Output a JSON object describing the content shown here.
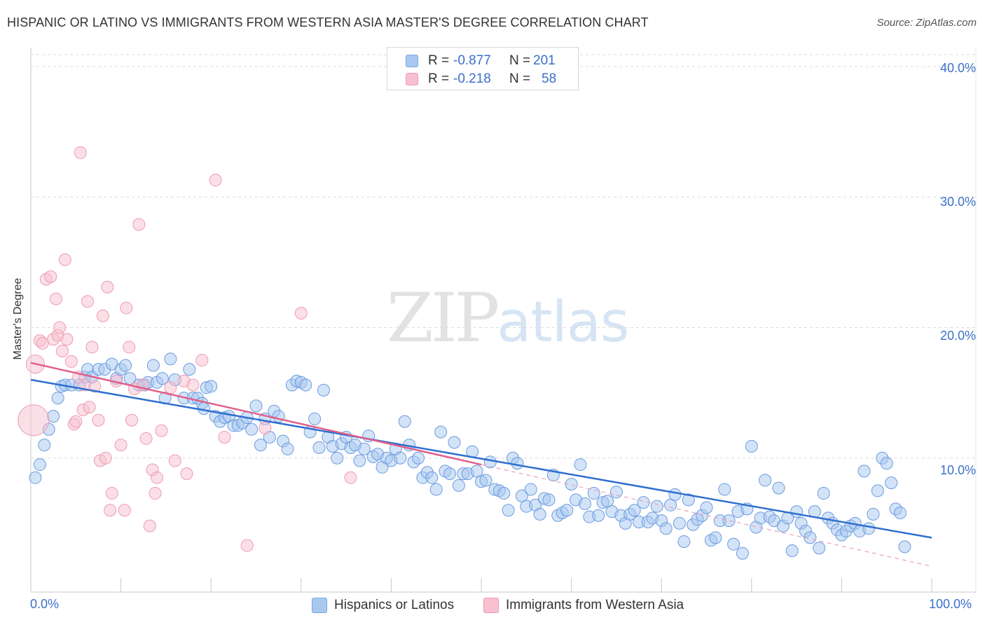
{
  "title": "HISPANIC OR LATINO VS IMMIGRANTS FROM WESTERN ASIA MASTER'S DEGREE CORRELATION CHART",
  "source": "Source: ZipAtlas.com",
  "watermark": {
    "zip": "ZIP",
    "atlas": "atlas"
  },
  "legend_top": {
    "rows": [
      {
        "r_label": "R =",
        "r_value": "-0.877",
        "n_label": "N =",
        "n_value": "201",
        "color": "#a8c8f0",
        "border": "#7aa6e0"
      },
      {
        "r_label": "R =",
        "r_value": "-0.218",
        "n_label": "N =",
        "n_value": "58",
        "color": "#f8c0d0",
        "border": "#ee9ab2"
      }
    ]
  },
  "chart_data": {
    "type": "scatter",
    "title": "HISPANIC OR LATINO VS IMMIGRANTS FROM WESTERN ASIA MASTER'S DEGREE CORRELATION CHART",
    "xlabel": "",
    "ylabel": "Master's Degree",
    "xlim": [
      0,
      100
    ],
    "ylim": [
      0,
      40
    ],
    "x_tick_labels": [
      "0.0%",
      "100.0%"
    ],
    "y_ticks": [
      10,
      20,
      30,
      40
    ],
    "y_tick_labels": [
      "10.0%",
      "20.0%",
      "30.0%",
      "40.0%"
    ],
    "grid": true,
    "legend_position": "top-center",
    "series": [
      {
        "name": "Hispanics or Latinos",
        "color": "#a8c8f0",
        "stroke": "#6b9be0",
        "trend": {
          "x": [
            0,
            100
          ],
          "y": [
            16.0,
            3.9
          ],
          "color": "#2f6fd0"
        },
        "points": [
          [
            0.5,
            8.5
          ],
          [
            1,
            9.5
          ],
          [
            1.5,
            11
          ],
          [
            2,
            12.2
          ],
          [
            2.5,
            13.2
          ],
          [
            3,
            14.6
          ],
          [
            3.4,
            15.5
          ],
          [
            3.8,
            15.6
          ],
          [
            4.5,
            15.6
          ],
          [
            5.4,
            15.6
          ],
          [
            6,
            16.2
          ],
          [
            6.3,
            16.8
          ],
          [
            6.8,
            16.2
          ],
          [
            7.5,
            16.8
          ],
          [
            8.2,
            16.8
          ],
          [
            9,
            17.2
          ],
          [
            9.5,
            16.1
          ],
          [
            10,
            16.8
          ],
          [
            10.5,
            17.1
          ],
          [
            11,
            16.1
          ],
          [
            12,
            15.6
          ],
          [
            12.6,
            15.6
          ],
          [
            13,
            15.8
          ],
          [
            13.6,
            17.1
          ],
          [
            14,
            15.8
          ],
          [
            14.6,
            16.1
          ],
          [
            14.9,
            14.6
          ],
          [
            15.5,
            17.6
          ],
          [
            16,
            16.0
          ],
          [
            17,
            14.6
          ],
          [
            17.6,
            16.8
          ],
          [
            18,
            14.6
          ],
          [
            18.5,
            14.6
          ],
          [
            19,
            14.2
          ],
          [
            19.2,
            13.8
          ],
          [
            19.5,
            15.4
          ],
          [
            20,
            15.5
          ],
          [
            20.5,
            13.2
          ],
          [
            21,
            12.8
          ],
          [
            21.5,
            13.1
          ],
          [
            22,
            13.2
          ],
          [
            22.5,
            12.5
          ],
          [
            23,
            12.5
          ],
          [
            23.5,
            12.7
          ],
          [
            24,
            13.1
          ],
          [
            24.5,
            12.2
          ],
          [
            25,
            14.0
          ],
          [
            25.5,
            11.0
          ],
          [
            26,
            13.0
          ],
          [
            26.5,
            11.6
          ],
          [
            27,
            13.6
          ],
          [
            27.5,
            13.2
          ],
          [
            28,
            11.3
          ],
          [
            28.5,
            10.7
          ],
          [
            29,
            15.6
          ],
          [
            29.5,
            15.9
          ],
          [
            30,
            15.8
          ],
          [
            30.5,
            15.6
          ],
          [
            31,
            12.0
          ],
          [
            31.5,
            13.0
          ],
          [
            32,
            10.8
          ],
          [
            32.5,
            15.2
          ],
          [
            33,
            11.6
          ],
          [
            33.5,
            10.9
          ],
          [
            34,
            10.0
          ],
          [
            34.5,
            11.1
          ],
          [
            35,
            11.6
          ],
          [
            35.5,
            10.8
          ],
          [
            36,
            11.0
          ],
          [
            36.5,
            9.8
          ],
          [
            37,
            10.7
          ],
          [
            37.5,
            11.7
          ],
          [
            38,
            10.1
          ],
          [
            38.5,
            10.3
          ],
          [
            39,
            9.3
          ],
          [
            39.5,
            10.0
          ],
          [
            40,
            9.8
          ],
          [
            40.5,
            10.7
          ],
          [
            41,
            10.0
          ],
          [
            41.5,
            12.8
          ],
          [
            42,
            11.0
          ],
          [
            42.5,
            9.7
          ],
          [
            43,
            10.0
          ],
          [
            43.5,
            8.5
          ],
          [
            44,
            8.9
          ],
          [
            44.5,
            8.5
          ],
          [
            45,
            7.6
          ],
          [
            45.5,
            12.0
          ],
          [
            46,
            9.0
          ],
          [
            46.5,
            8.8
          ],
          [
            47,
            11.2
          ],
          [
            47.5,
            7.9
          ],
          [
            48,
            8.8
          ],
          [
            48.5,
            8.8
          ],
          [
            49,
            10.5
          ],
          [
            49.5,
            9.0
          ],
          [
            50,
            8.2
          ],
          [
            50.5,
            8.3
          ],
          [
            51,
            9.7
          ],
          [
            51.5,
            7.6
          ],
          [
            52,
            7.5
          ],
          [
            52.5,
            7.3
          ],
          [
            53,
            6.0
          ],
          [
            53.5,
            10.0
          ],
          [
            54,
            9.6
          ],
          [
            54.5,
            7.1
          ],
          [
            55,
            6.3
          ],
          [
            55.5,
            7.6
          ],
          [
            56,
            6.4
          ],
          [
            56.5,
            5.7
          ],
          [
            57,
            6.9
          ],
          [
            57.5,
            6.8
          ],
          [
            58,
            8.7
          ],
          [
            58.5,
            5.6
          ],
          [
            59,
            5.8
          ],
          [
            59.5,
            6.0
          ],
          [
            60,
            8.0
          ],
          [
            60.5,
            6.8
          ],
          [
            61,
            9.5
          ],
          [
            61.5,
            6.5
          ],
          [
            62,
            5.5
          ],
          [
            62.5,
            7.3
          ],
          [
            63,
            5.6
          ],
          [
            63.5,
            6.6
          ],
          [
            64,
            6.7
          ],
          [
            64.5,
            5.9
          ],
          [
            65,
            7.4
          ],
          [
            65.5,
            5.6
          ],
          [
            66,
            5.0
          ],
          [
            66.5,
            5.7
          ],
          [
            67,
            6.0
          ],
          [
            67.5,
            5.1
          ],
          [
            68,
            6.6
          ],
          [
            68.5,
            5.1
          ],
          [
            69,
            5.4
          ],
          [
            69.5,
            6.3
          ],
          [
            70,
            5.2
          ],
          [
            70.5,
            4.6
          ],
          [
            71,
            6.4
          ],
          [
            71.5,
            7.2
          ],
          [
            72,
            5.0
          ],
          [
            72.5,
            3.6
          ],
          [
            73,
            6.8
          ],
          [
            73.5,
            4.9
          ],
          [
            74,
            5.3
          ],
          [
            74.5,
            5.6
          ],
          [
            75,
            6.2
          ],
          [
            75.5,
            3.7
          ],
          [
            76,
            3.9
          ],
          [
            76.5,
            5.2
          ],
          [
            77,
            7.6
          ],
          [
            77.5,
            5.2
          ],
          [
            78,
            3.4
          ],
          [
            78.5,
            5.9
          ],
          [
            79,
            2.7
          ],
          [
            79.5,
            6.1
          ],
          [
            80,
            10.9
          ],
          [
            80.5,
            4.7
          ],
          [
            81,
            5.4
          ],
          [
            81.5,
            8.3
          ],
          [
            82,
            5.5
          ],
          [
            82.5,
            5.2
          ],
          [
            83,
            7.7
          ],
          [
            83.5,
            4.8
          ],
          [
            84,
            5.4
          ],
          [
            84.5,
            2.9
          ],
          [
            85,
            5.9
          ],
          [
            85.5,
            5.0
          ],
          [
            86,
            4.4
          ],
          [
            86.5,
            3.9
          ],
          [
            87,
            5.9
          ],
          [
            87.5,
            3.1
          ],
          [
            88,
            7.3
          ],
          [
            88.5,
            5.4
          ],
          [
            89,
            5.0
          ],
          [
            89.5,
            4.5
          ],
          [
            90,
            4.1
          ],
          [
            90.5,
            4.4
          ],
          [
            91,
            4.8
          ],
          [
            91.5,
            5.0
          ],
          [
            92,
            4.4
          ],
          [
            92.5,
            9.0
          ],
          [
            93,
            4.6
          ],
          [
            93.5,
            5.7
          ],
          [
            94,
            7.5
          ],
          [
            94.5,
            10.0
          ],
          [
            95,
            9.6
          ],
          [
            95.5,
            8.1
          ],
          [
            96,
            6.1
          ],
          [
            96.5,
            5.8
          ],
          [
            97,
            3.2
          ]
        ]
      },
      {
        "name": "Immigrants from Western Asia",
        "color": "#f8c0d0",
        "stroke": "#ee9ab2",
        "trend": {
          "x": [
            0,
            50
          ],
          "y": [
            17.3,
            9.5
          ],
          "color": "#e0608a"
        },
        "points": [
          [
            0.3,
            12.9
          ],
          [
            0.5,
            17.2
          ],
          [
            1,
            19.0
          ],
          [
            1.3,
            18.8
          ],
          [
            1.7,
            23.7
          ],
          [
            2.2,
            23.9
          ],
          [
            2.5,
            19.1
          ],
          [
            2.8,
            22.2
          ],
          [
            3,
            19.4
          ],
          [
            3.2,
            20.0
          ],
          [
            3.5,
            18.2
          ],
          [
            3.8,
            25.2
          ],
          [
            4,
            19.1
          ],
          [
            4.5,
            17.4
          ],
          [
            4.8,
            12.6
          ],
          [
            5,
            12.8
          ],
          [
            5.3,
            16.2
          ],
          [
            5.5,
            33.4
          ],
          [
            5.8,
            13.7
          ],
          [
            6,
            15.6
          ],
          [
            6.3,
            22.0
          ],
          [
            6.5,
            13.9
          ],
          [
            6.8,
            18.5
          ],
          [
            7.1,
            15.5
          ],
          [
            7.5,
            12.9
          ],
          [
            7.7,
            9.8
          ],
          [
            8,
            20.9
          ],
          [
            8.3,
            10.0
          ],
          [
            8.5,
            23.1
          ],
          [
            8.8,
            6.0
          ],
          [
            9,
            7.3
          ],
          [
            9.5,
            15.9
          ],
          [
            10,
            11.0
          ],
          [
            10.4,
            6.0
          ],
          [
            10.6,
            21.5
          ],
          [
            10.9,
            18.5
          ],
          [
            11.2,
            12.9
          ],
          [
            11.5,
            15.3
          ],
          [
            12,
            27.9
          ],
          [
            12.4,
            15.6
          ],
          [
            12.8,
            11.5
          ],
          [
            13.2,
            4.8
          ],
          [
            13.5,
            9.1
          ],
          [
            13.8,
            7.3
          ],
          [
            14,
            8.5
          ],
          [
            14.5,
            12.1
          ],
          [
            15.5,
            15.4
          ],
          [
            16,
            9.8
          ],
          [
            17,
            15.9
          ],
          [
            17.3,
            8.8
          ],
          [
            18,
            15.6
          ],
          [
            19,
            17.5
          ],
          [
            20.5,
            31.3
          ],
          [
            21.5,
            11.6
          ],
          [
            24,
            3.3
          ],
          [
            26,
            12.3
          ],
          [
            30,
            21.1
          ],
          [
            35.5,
            8.5
          ]
        ]
      }
    ]
  },
  "bottom_legend": [
    {
      "label": "Hispanics or Latinos",
      "color": "#a8c8f0",
      "border": "#7aa6e0"
    },
    {
      "label": "Immigrants from Western Asia",
      "color": "#f8c0d0",
      "border": "#ee9ab2"
    }
  ]
}
